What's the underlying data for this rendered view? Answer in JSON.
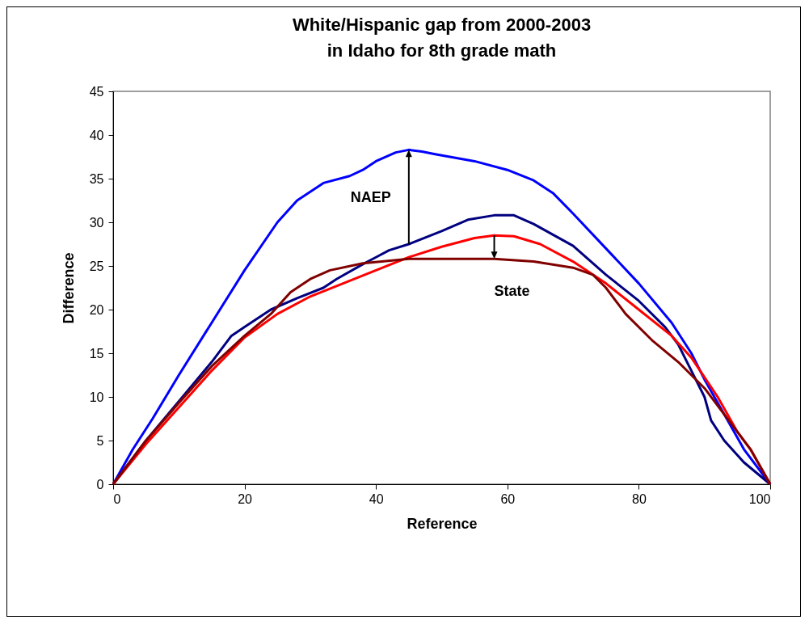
{
  "chart_data": {
    "type": "line",
    "title": "White/Hispanic gap from 2000-2003\nin Idaho for 8th grade math",
    "xlabel": "Reference",
    "ylabel": "Difference",
    "xlim": [
      0,
      100
    ],
    "xticks": [
      0,
      20,
      40,
      60,
      80,
      100
    ],
    "ylim": [
      0,
      45
    ],
    "yticks": [
      0,
      5,
      10,
      15,
      20,
      25,
      30,
      35,
      40,
      45
    ],
    "grid": false,
    "legend": false,
    "line_style": "solid",
    "marker": "none",
    "annotations": [
      "NAEP",
      "State"
    ],
    "series": [
      {
        "color": "#0000ff",
        "x": [
          0,
          3,
          6,
          10,
          15,
          20,
          25,
          28,
          32,
          36,
          38,
          40,
          43,
          45,
          47,
          49,
          55,
          60,
          64,
          67,
          70,
          75,
          80,
          85,
          88,
          90,
          93,
          96,
          100
        ],
        "values": [
          0,
          4,
          7.5,
          12.5,
          18.5,
          24.5,
          30,
          32.5,
          34.5,
          35.3,
          36,
          37,
          38,
          38.3,
          38.1,
          37.8,
          37,
          36,
          34.8,
          33.3,
          31,
          27,
          23,
          18.5,
          15,
          12,
          8,
          4,
          0
        ]
      },
      {
        "color": "#000080",
        "x": [
          0,
          5,
          10,
          15,
          18,
          20,
          24,
          28,
          32,
          34,
          38,
          40,
          42,
          45,
          50,
          54,
          58,
          61,
          64,
          70,
          75,
          80,
          84,
          86,
          88,
          90,
          91,
          93,
          96,
          100
        ],
        "values": [
          0,
          5,
          9.5,
          14,
          17,
          18,
          20,
          21.3,
          22.5,
          23.5,
          25.2,
          26,
          26.8,
          27.5,
          29,
          30.3,
          30.8,
          30.8,
          29.8,
          27.3,
          24,
          21,
          18,
          16,
          13,
          10,
          7.3,
          5,
          2.5,
          0
        ]
      },
      {
        "color": "#ff0000",
        "x": [
          0,
          5,
          10,
          15,
          20,
          25,
          30,
          35,
          40,
          45,
          50,
          55,
          58,
          61,
          65,
          70,
          75,
          80,
          85,
          88,
          92,
          95,
          97,
          100
        ],
        "values": [
          0,
          4.6,
          8.8,
          13,
          16.8,
          19.5,
          21.5,
          23,
          24.5,
          26,
          27.2,
          28.2,
          28.5,
          28.4,
          27.5,
          25.5,
          23,
          20,
          17,
          14.5,
          10,
          6,
          4,
          0
        ]
      },
      {
        "color": "#800000",
        "x": [
          0,
          5,
          10,
          15,
          20,
          24,
          27,
          30,
          33,
          38,
          45,
          50,
          58,
          64,
          70,
          73,
          75,
          78,
          82,
          86,
          90,
          93,
          97,
          100
        ],
        "values": [
          0,
          5,
          9.3,
          13.5,
          17,
          19.5,
          22,
          23.5,
          24.5,
          25.3,
          25.8,
          25.8,
          25.8,
          25.5,
          24.8,
          24,
          22.5,
          19.5,
          16.5,
          14,
          11,
          8,
          4,
          0
        ]
      }
    ]
  }
}
